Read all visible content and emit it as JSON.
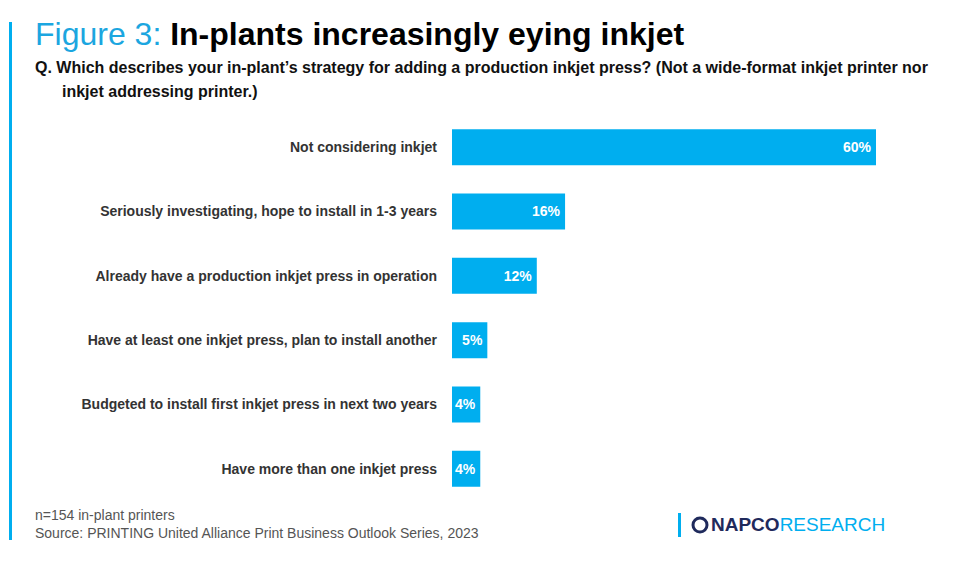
{
  "chart_data": {
    "type": "bar",
    "title": "Figure 3: In-plants increasingly eying inkjet",
    "subtitle": "Q. Which describes your in-plant’s strategy for adding a production inkjet press? (Not a wide-format inkjet printer nor inkjet addressing printer.)",
    "categories": [
      "Not considering inkjet",
      "Seriously investigating, hope to install in 1-3 years",
      "Already have a production inkjet press in operation",
      "Have at least one inkjet press, plan to install another",
      "Budgeted to install first inkjet press in next two years",
      "Have more than one inkjet press"
    ],
    "values": [
      60,
      16,
      12,
      5,
      4,
      4
    ],
    "value_labels": [
      "60%",
      "16%",
      "12%",
      "5%",
      "4%",
      "4%"
    ],
    "color": "#00aeef",
    "orientation": "horizontal",
    "data_labels": true,
    "tick_labels": "y",
    "grid": false,
    "xlim": [
      0,
      60
    ],
    "notes": [
      "n=154 in-plant printers",
      "Source: PRINTING United Alliance Print Business Outlook Series, 2023"
    ],
    "logo": [
      "NAPCO",
      "RESEARCH"
    ]
  }
}
